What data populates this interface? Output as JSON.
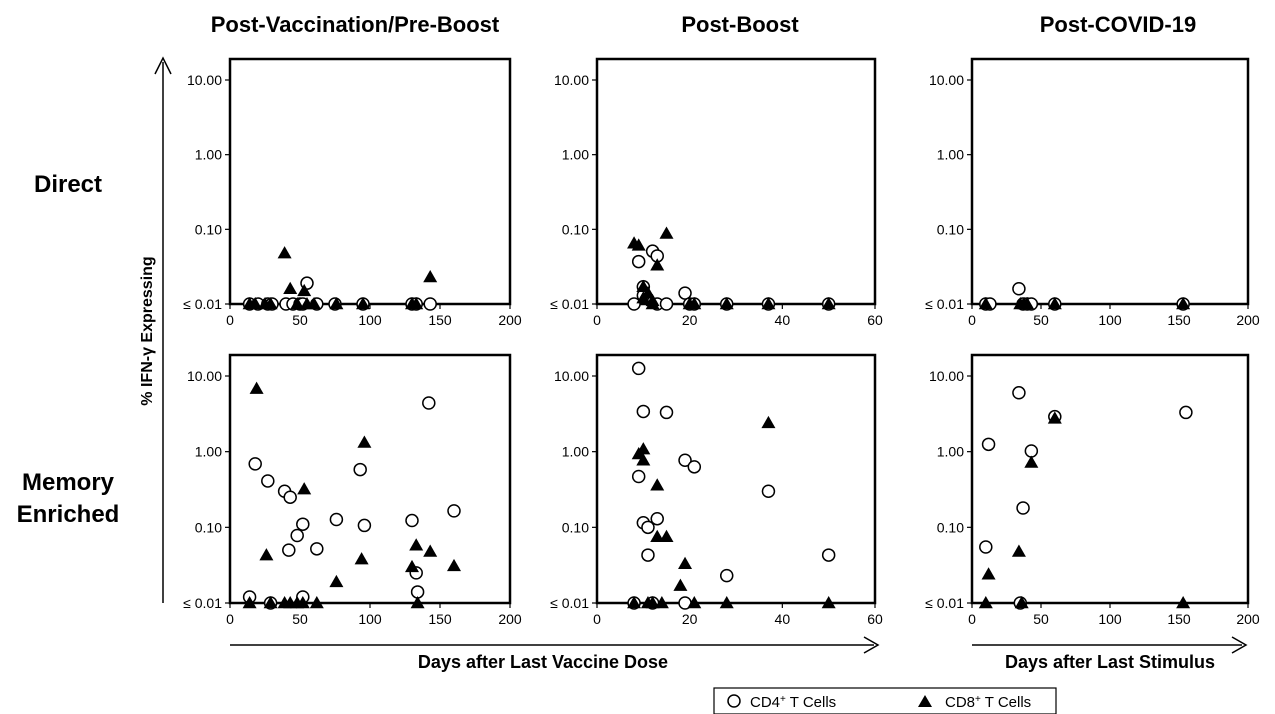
{
  "figure": {
    "column_titles": [
      "Post-Vaccination/Pre-Boost",
      "Post-Boost",
      "Post-COVID-19"
    ],
    "row_labels": [
      [
        "Direct"
      ],
      [
        "Memory",
        "Enriched"
      ]
    ],
    "y_axis_label": "% IFN-γ Expressing",
    "x_axis_labels": [
      "Days after Last Vaccine Dose",
      "Days after Last Stimulus"
    ],
    "y_tick_labels": [
      "≤ 0.01",
      "0.10",
      "1.00",
      "10.00"
    ],
    "legend": {
      "placement": "bottom-right",
      "items": [
        {
          "marker": "open-circle",
          "label": "CD4",
          "sup": "+",
          "suffix": " T Cells"
        },
        {
          "marker": "filled-triangle",
          "label": "CD8",
          "sup": "+",
          "suffix": " T Cells"
        }
      ]
    },
    "colors": {
      "marker": "#000000",
      "axis": "#000000",
      "background": "#ffffff"
    }
  },
  "chart_data": [
    {
      "type": "scatter",
      "row": "Direct",
      "column": "Post-Vaccination/Pre-Boost",
      "x_ticks": [
        0,
        50,
        100,
        150,
        200
      ],
      "xlim": [
        0,
        200
      ],
      "ylim": [
        0.01,
        20
      ],
      "yscale": "log",
      "series": [
        {
          "name": "CD4+ T Cells",
          "x": [
            14,
            20,
            27,
            30,
            40,
            45,
            50,
            52,
            55,
            62,
            75,
            95,
            130,
            133,
            143
          ],
          "y": [
            0.01,
            0.01,
            0.01,
            0.01,
            0.01,
            0.01,
            0.01,
            0.01,
            0.019,
            0.01,
            0.01,
            0.01,
            0.01,
            0.01,
            0.01
          ]
        },
        {
          "name": "CD8+ T Cells",
          "x": [
            14,
            18,
            25,
            29,
            39,
            43,
            48,
            53,
            55,
            60,
            76,
            95,
            130,
            133,
            143
          ],
          "y": [
            0.01,
            0.01,
            0.01,
            0.01,
            0.048,
            0.016,
            0.01,
            0.015,
            0.01,
            0.01,
            0.01,
            0.01,
            0.01,
            0.01,
            0.023
          ]
        }
      ]
    },
    {
      "type": "scatter",
      "row": "Direct",
      "column": "Post-Boost",
      "x_ticks": [
        0,
        20,
        40,
        60
      ],
      "xlim": [
        0,
        60
      ],
      "ylim": [
        0.01,
        20
      ],
      "yscale": "log",
      "series": [
        {
          "name": "CD4+ T Cells",
          "x": [
            8,
            9,
            10,
            10,
            12,
            13,
            13,
            15,
            19,
            20,
            21,
            28,
            37,
            50
          ],
          "y": [
            0.01,
            0.037,
            0.017,
            0.013,
            0.051,
            0.044,
            0.01,
            0.01,
            0.014,
            0.01,
            0.01,
            0.01,
            0.01,
            0.01
          ]
        },
        {
          "name": "CD8+ T Cells",
          "x": [
            8,
            9,
            10,
            10,
            11,
            12,
            12,
            13,
            15,
            20,
            21,
            28,
            37,
            50
          ],
          "y": [
            0.065,
            0.061,
            0.017,
            0.012,
            0.014,
            0.011,
            0.01,
            0.033,
            0.088,
            0.01,
            0.01,
            0.01,
            0.01,
            0.01
          ]
        }
      ]
    },
    {
      "type": "scatter",
      "row": "Direct",
      "column": "Post-COVID-19",
      "x_ticks": [
        0,
        50,
        100,
        150,
        200
      ],
      "xlim": [
        0,
        200
      ],
      "ylim": [
        0.01,
        20
      ],
      "yscale": "log",
      "series": [
        {
          "name": "CD4+ T Cells",
          "x": [
            10,
            13,
            34,
            37,
            40,
            43,
            60,
            153
          ],
          "y": [
            0.01,
            0.01,
            0.016,
            0.01,
            0.01,
            0.01,
            0.01,
            0.01
          ]
        },
        {
          "name": "CD8+ T Cells",
          "x": [
            10,
            35,
            38,
            40,
            60,
            153
          ],
          "y": [
            0.01,
            0.01,
            0.01,
            0.01,
            0.01,
            0.01
          ]
        }
      ]
    },
    {
      "type": "scatter",
      "row": "Memory Enriched",
      "column": "Post-Vaccination/Pre-Boost",
      "x_ticks": [
        0,
        50,
        100,
        150,
        200
      ],
      "xlim": [
        0,
        200
      ],
      "ylim": [
        0.01,
        20
      ],
      "yscale": "log",
      "series": [
        {
          "name": "CD4+ T Cells",
          "x": [
            14,
            18,
            27,
            29,
            39,
            42,
            43,
            48,
            52,
            52,
            62,
            76,
            93,
            96,
            130,
            133,
            134,
            142,
            160
          ],
          "y": [
            0.012,
            0.69,
            0.41,
            0.01,
            0.3,
            0.05,
            0.25,
            0.078,
            0.11,
            0.012,
            0.052,
            0.127,
            0.58,
            0.106,
            0.123,
            0.025,
            0.014,
            4.4,
            0.165
          ]
        },
        {
          "name": "CD8+ T Cells",
          "x": [
            14,
            19,
            26,
            29,
            39,
            43,
            48,
            52,
            53,
            62,
            76,
            94,
            96,
            130,
            133,
            134,
            143,
            160
          ],
          "y": [
            0.01,
            6.8,
            0.043,
            0.01,
            0.01,
            0.01,
            0.01,
            0.01,
            0.32,
            0.01,
            0.019,
            0.038,
            1.32,
            0.03,
            0.058,
            0.01,
            0.048,
            0.031
          ]
        }
      ]
    },
    {
      "type": "scatter",
      "row": "Memory Enriched",
      "column": "Post-Boost",
      "x_ticks": [
        0,
        20,
        40,
        60
      ],
      "xlim": [
        0,
        60
      ],
      "ylim": [
        0.01,
        20
      ],
      "yscale": "log",
      "series": [
        {
          "name": "CD4+ T Cells",
          "x": [
            8,
            9,
            9,
            10,
            10,
            11,
            11,
            12,
            13,
            15,
            19,
            19,
            21,
            28,
            37,
            50
          ],
          "y": [
            0.01,
            12.6,
            0.47,
            3.4,
            0.115,
            0.1,
            0.043,
            0.01,
            0.13,
            3.3,
            0.01,
            0.77,
            0.63,
            0.023,
            0.3,
            0.043
          ]
        },
        {
          "name": "CD8+ T Cells",
          "x": [
            8,
            9,
            10,
            10,
            11,
            12,
            13,
            13,
            14,
            15,
            18,
            19,
            21,
            28,
            37,
            50
          ],
          "y": [
            0.01,
            0.93,
            1.08,
            0.77,
            0.01,
            0.01,
            0.36,
            0.075,
            0.01,
            0.075,
            0.017,
            0.033,
            0.01,
            0.01,
            2.4,
            0.01
          ]
        }
      ]
    },
    {
      "type": "scatter",
      "row": "Memory Enriched",
      "column": "Post-COVID-19",
      "x_ticks": [
        0,
        50,
        100,
        150,
        200
      ],
      "xlim": [
        0,
        200
      ],
      "ylim": [
        0.01,
        20
      ],
      "yscale": "log",
      "series": [
        {
          "name": "CD4+ T Cells",
          "x": [
            10,
            12,
            34,
            35,
            37,
            43,
            60,
            155
          ],
          "y": [
            0.055,
            1.25,
            6.0,
            0.01,
            0.18,
            1.02,
            2.9,
            3.3
          ]
        },
        {
          "name": "CD8+ T Cells",
          "x": [
            10,
            12,
            34,
            36,
            43,
            60,
            153
          ],
          "y": [
            0.01,
            0.024,
            0.048,
            0.01,
            0.72,
            2.75,
            0.01
          ]
        }
      ]
    }
  ]
}
